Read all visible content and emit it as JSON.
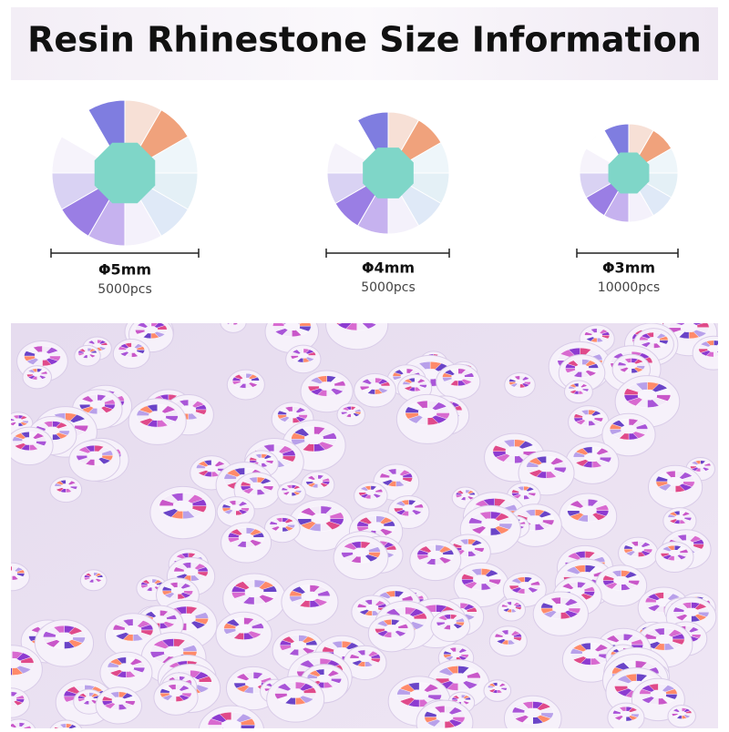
{
  "header": {
    "title": "Resin Rhinestone Size Information"
  },
  "sizes": [
    {
      "diameter": "Φ5mm",
      "count": "5000pcs"
    },
    {
      "diameter": "Φ4mm",
      "count": "5000pcs"
    },
    {
      "diameter": "Φ3mm",
      "count": "10000pcs"
    }
  ]
}
